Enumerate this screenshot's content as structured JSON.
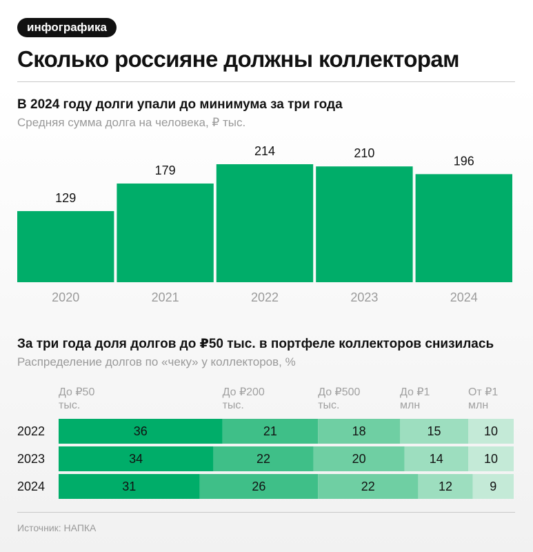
{
  "tag": "инфографика",
  "headline": "Сколько россияне должны коллекторам",
  "chart1": {
    "title": "В 2024 году долги упали до минимума за три года",
    "subtitle": "Средняя сумма долга на человека, ₽ тыс."
  },
  "chart2": {
    "title": "За три года доля долгов до ₽50 тыс. в портфеле коллекторов снизилась",
    "subtitle": "Распределение долгов по «чеку» у коллекторов, %"
  },
  "source": "Источник: НАПКА",
  "colors": {
    "bar": "#00ad69",
    "seg": [
      "#00ad69",
      "#3fbf88",
      "#6fcfa3",
      "#9ddebf",
      "#c4ead7"
    ]
  },
  "chart_data": [
    {
      "type": "bar",
      "categories": [
        "2020",
        "2021",
        "2022",
        "2023",
        "2024"
      ],
      "values": [
        129,
        179,
        214,
        210,
        196
      ],
      "ylim": [
        0,
        214
      ]
    },
    {
      "type": "bar",
      "stacked": true,
      "orientation": "horizontal",
      "categories": [
        "2022",
        "2023",
        "2024"
      ],
      "series": [
        {
          "name": "До ₽50 тыс.",
          "values": [
            36,
            34,
            31
          ]
        },
        {
          "name": "До ₽200 тыс.",
          "values": [
            21,
            22,
            26
          ]
        },
        {
          "name": "До ₽500 тыс.",
          "values": [
            18,
            20,
            22
          ]
        },
        {
          "name": "До ₽1 млн",
          "values": [
            15,
            14,
            12
          ]
        },
        {
          "name": "От ₽1 млн",
          "values": [
            10,
            10,
            9
          ]
        }
      ]
    }
  ]
}
